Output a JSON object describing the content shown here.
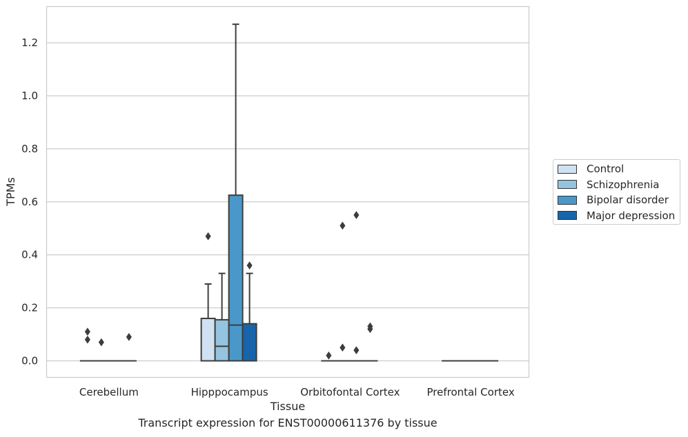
{
  "chart_data": {
    "type": "box",
    "title": "",
    "caption": "Transcript expression for ENST00000611376 by tissue",
    "xlabel": "Tissue",
    "ylabel": "TPMs",
    "ylim": [
      -0.063,
      1.335
    ],
    "yticks": [
      0.0,
      0.2,
      0.4,
      0.6,
      0.8,
      1.0,
      1.2
    ],
    "ytick_labels": [
      "0.0",
      "0.2",
      "0.4",
      "0.6",
      "0.8",
      "1.0",
      "1.2"
    ],
    "grid": "horizontal",
    "legend_position": "right",
    "categories": [
      "Cerebellum",
      "Hipppocampus",
      "Orbitofontal Cortex",
      "Prefrontal Cortex"
    ],
    "series": [
      {
        "name": "Control",
        "color": "#d0e1f2",
        "boxes": [
          {
            "q1": 0,
            "median": 0,
            "q3": 0,
            "whislo": 0,
            "whishi": 0,
            "fliers": [
              0.08,
              0.11
            ]
          },
          {
            "q1": 0,
            "median": 0,
            "q3": 0.16,
            "whislo": 0,
            "whishi": 0.29,
            "fliers": [
              0.47
            ]
          },
          {
            "q1": 0,
            "median": 0,
            "q3": 0,
            "whislo": 0,
            "whishi": 0,
            "fliers": [
              0.02
            ]
          },
          {
            "q1": 0,
            "median": 0,
            "q3": 0,
            "whislo": 0,
            "whishi": 0,
            "fliers": []
          }
        ]
      },
      {
        "name": "Schizophrenia",
        "color": "#94c4df",
        "boxes": [
          {
            "q1": 0,
            "median": 0,
            "q3": 0,
            "whislo": 0,
            "whishi": 0,
            "fliers": [
              0.07
            ]
          },
          {
            "q1": 0,
            "median": 0.055,
            "q3": 0.155,
            "whislo": 0,
            "whishi": 0.33,
            "fliers": []
          },
          {
            "q1": 0,
            "median": 0,
            "q3": 0,
            "whislo": 0,
            "whishi": 0,
            "fliers": [
              0.05,
              0.51
            ]
          },
          {
            "q1": 0,
            "median": 0,
            "q3": 0,
            "whislo": 0,
            "whishi": 0,
            "fliers": []
          }
        ]
      },
      {
        "name": "Bipolar disorder",
        "color": "#4a98c9",
        "boxes": [
          {
            "q1": 0,
            "median": 0,
            "q3": 0,
            "whislo": 0,
            "whishi": 0,
            "fliers": []
          },
          {
            "q1": 0,
            "median": 0.135,
            "q3": 0.625,
            "whislo": 0,
            "whishi": 1.27,
            "fliers": []
          },
          {
            "q1": 0,
            "median": 0,
            "q3": 0,
            "whislo": 0,
            "whishi": 0,
            "fliers": [
              0.04,
              0.55
            ]
          },
          {
            "q1": 0,
            "median": 0,
            "q3": 0,
            "whislo": 0,
            "whishi": 0,
            "fliers": []
          }
        ]
      },
      {
        "name": "Major depression",
        "color": "#1764ab",
        "boxes": [
          {
            "q1": 0,
            "median": 0,
            "q3": 0,
            "whislo": 0,
            "whishi": 0,
            "fliers": [
              0.09
            ]
          },
          {
            "q1": 0,
            "median": 0,
            "q3": 0.14,
            "whislo": 0,
            "whishi": 0.33,
            "fliers": [
              0.36
            ]
          },
          {
            "q1": 0,
            "median": 0,
            "q3": 0,
            "whislo": 0,
            "whishi": 0,
            "fliers": [
              0.12,
              0.13
            ]
          },
          {
            "q1": 0,
            "median": 0,
            "q3": 0,
            "whislo": 0,
            "whishi": 0,
            "fliers": []
          }
        ]
      }
    ]
  }
}
